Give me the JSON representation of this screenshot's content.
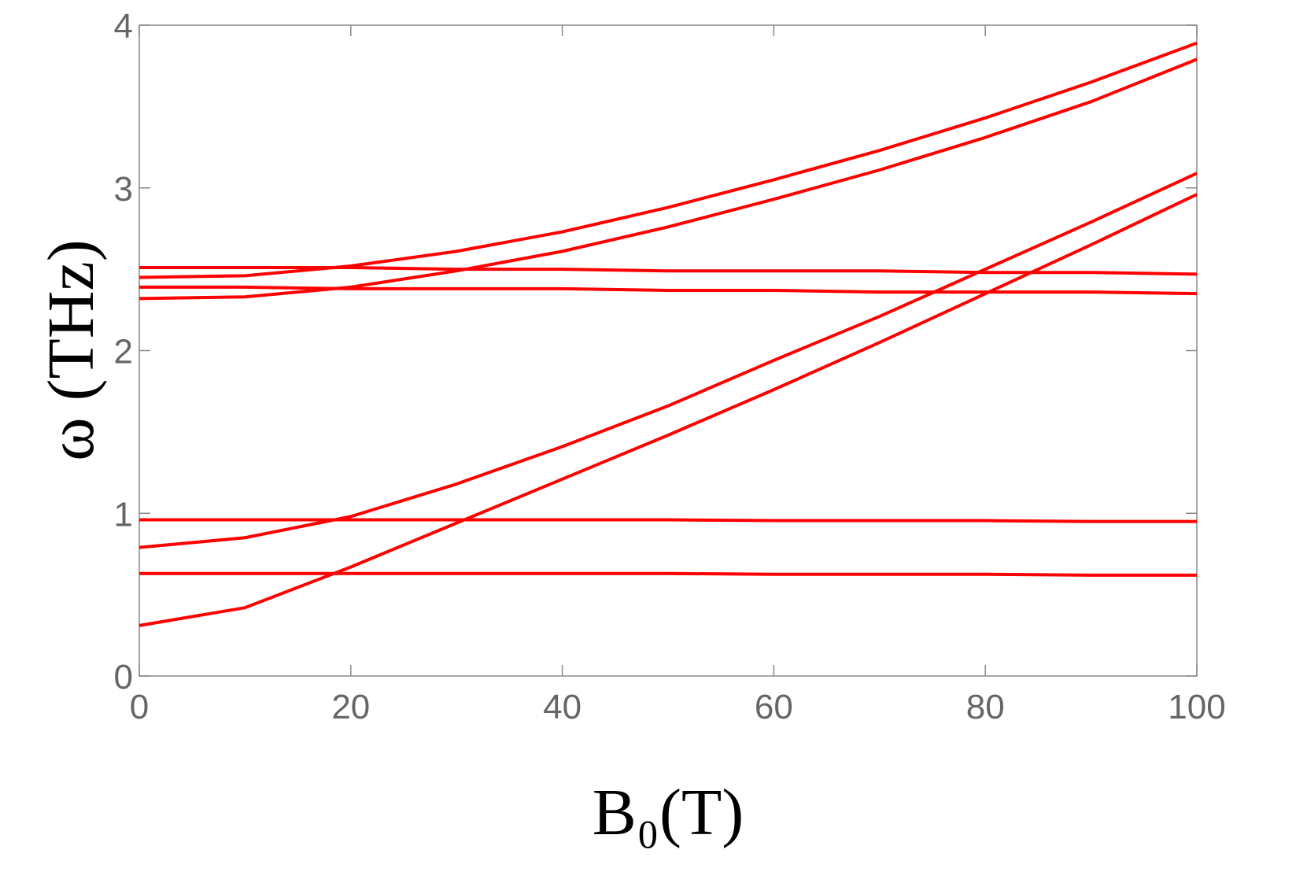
{
  "chart_data": {
    "type": "line",
    "x_label": "B₀(T)",
    "y_label": "ω (THz)",
    "x": [
      0,
      10,
      20,
      30,
      40,
      50,
      60,
      70,
      80,
      90,
      100
    ],
    "series": [
      {
        "color": "#ff0000",
        "values": [
          2.51,
          2.51,
          2.51,
          2.5,
          2.5,
          2.49,
          2.49,
          2.49,
          2.48,
          2.48,
          2.47
        ]
      },
      {
        "color": "#ff0000",
        "values": [
          2.39,
          2.39,
          2.38,
          2.38,
          2.38,
          2.37,
          2.37,
          2.36,
          2.36,
          2.36,
          2.35
        ]
      },
      {
        "color": "#ff0000",
        "values": [
          0.96,
          0.96,
          0.96,
          0.96,
          0.96,
          0.96,
          0.955,
          0.955,
          0.955,
          0.95,
          0.95
        ]
      },
      {
        "color": "#ff0000",
        "values": [
          0.63,
          0.63,
          0.63,
          0.63,
          0.63,
          0.63,
          0.625,
          0.625,
          0.625,
          0.62,
          0.62
        ]
      },
      {
        "color": "#ff0000",
        "values": [
          2.45,
          2.46,
          2.52,
          2.61,
          2.73,
          2.88,
          3.05,
          3.23,
          3.43,
          3.65,
          3.89
        ]
      },
      {
        "color": "#ff0000",
        "values": [
          2.32,
          2.33,
          2.39,
          2.49,
          2.61,
          2.76,
          2.93,
          3.11,
          3.31,
          3.53,
          3.79
        ]
      },
      {
        "color": "#ff0000",
        "values": [
          0.79,
          0.85,
          0.98,
          1.18,
          1.41,
          1.66,
          1.94,
          2.21,
          2.5,
          2.79,
          3.09
        ]
      },
      {
        "color": "#ff0000",
        "values": [
          0.31,
          0.42,
          0.67,
          0.94,
          1.21,
          1.48,
          1.76,
          2.05,
          2.35,
          2.65,
          2.96
        ]
      }
    ],
    "xlim": [
      0,
      100
    ],
    "xticks": [
      0,
      20,
      40,
      60,
      80,
      100
    ],
    "ylim": [
      0,
      4
    ],
    "yticks": [
      0,
      1,
      2,
      3,
      4
    ]
  }
}
